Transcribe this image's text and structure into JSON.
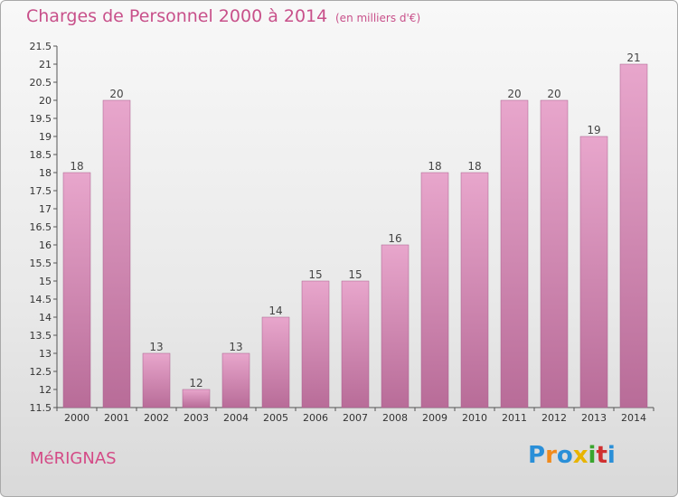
{
  "title": "Charges de Personnel 2000 à 2014",
  "subtitle": "(en milliers d'€)",
  "commune": "MéRIGNAS",
  "logo": {
    "letters": [
      "P",
      "r",
      "o",
      "x",
      "i",
      "t",
      "i"
    ],
    "colors": [
      "#2a8fd8",
      "#f08a1c",
      "#2a8fd8",
      "#e8b400",
      "#3aa52e",
      "#d03030",
      "#2a8fd8"
    ]
  },
  "colors": {
    "bar_top": "#e8a6cc",
    "bar_bottom": "#b86c98",
    "title": "#c8508a",
    "axis": "#555555"
  },
  "chart_data": {
    "type": "bar",
    "title": "Charges de Personnel 2000 à 2014",
    "subtitle": "(en milliers d'€)",
    "categories": [
      "2000",
      "2001",
      "2002",
      "2003",
      "2004",
      "2005",
      "2006",
      "2007",
      "2008",
      "2009",
      "2010",
      "2011",
      "2012",
      "2013",
      "2014"
    ],
    "values": [
      18,
      20,
      13,
      12,
      13,
      14,
      15,
      15,
      16,
      18,
      18,
      20,
      20,
      19,
      21
    ],
    "value_labels": [
      "18",
      "20",
      "13",
      "12",
      "13",
      "14",
      "15",
      "15",
      "16",
      "18",
      "18",
      "20",
      "20",
      "19",
      "21"
    ],
    "ylim": [
      11.5,
      21.5
    ],
    "yticks": [
      "11.5",
      "12",
      "12.5",
      "13",
      "13.5",
      "14",
      "14.5",
      "15",
      "15.5",
      "16",
      "16.5",
      "17",
      "17.5",
      "18",
      "18.5",
      "19",
      "19.5",
      "20",
      "20.5",
      "21",
      "21.5"
    ],
    "xlabel": "",
    "ylabel": "",
    "grid": false,
    "legend": "none"
  }
}
